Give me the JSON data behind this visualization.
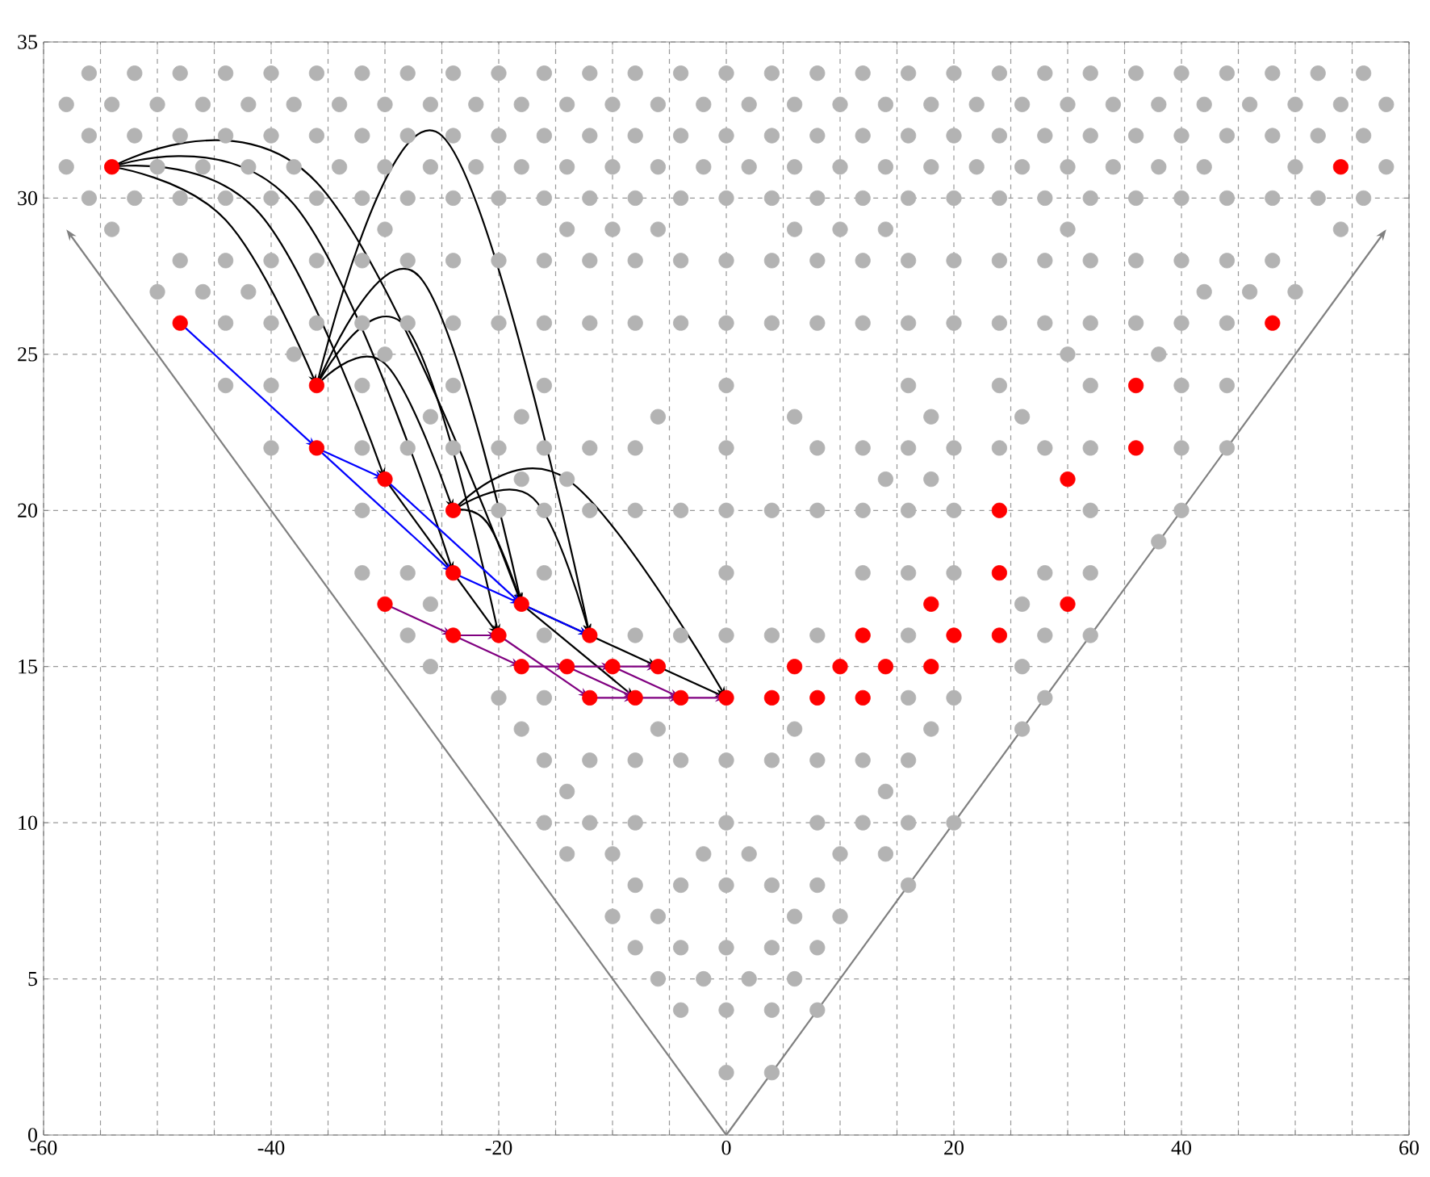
{
  "chart_data": {
    "type": "scatter",
    "marker": "circle",
    "grid": true,
    "xlim": [
      -60,
      60
    ],
    "ylim": [
      0,
      35
    ],
    "xticks": [
      -60,
      {
        "value": -55,
        "label": null
      },
      {
        "value": -50,
        "label": null
      },
      {
        "value": -45,
        "label": null
      },
      -40,
      {
        "value": -35,
        "label": null
      },
      {
        "value": -30,
        "label": null
      },
      {
        "value": -25,
        "label": null
      },
      -20,
      {
        "value": -15,
        "label": null
      },
      {
        "value": -10,
        "label": null
      },
      {
        "value": -5,
        "label": null
      },
      0,
      {
        "value": 5,
        "label": null
      },
      {
        "value": 10,
        "label": null
      },
      {
        "value": 15,
        "label": null
      },
      20,
      {
        "value": 25,
        "label": null
      },
      {
        "value": 30,
        "label": null
      },
      {
        "value": 35,
        "label": null
      },
      40,
      {
        "value": 45,
        "label": null
      },
      {
        "value": 50,
        "label": null
      },
      {
        "value": 55,
        "label": null
      },
      60
    ],
    "yticks": [
      0,
      5,
      10,
      15,
      20,
      25,
      30,
      35
    ],
    "series": [
      {
        "color": "#b3b3b3",
        "x": [
          -56,
          -52,
          -48,
          -44,
          -40,
          -36,
          -32,
          -28,
          -24,
          -20,
          -16,
          -12,
          -8,
          -4,
          0,
          4,
          8,
          12,
          16,
          20,
          24,
          28,
          32,
          36,
          40,
          44,
          48,
          52,
          56
        ],
        "values": [
          34,
          34,
          34,
          34,
          34,
          34,
          34,
          34,
          34,
          34,
          34,
          34,
          34,
          34,
          34,
          34,
          34,
          34,
          34,
          34,
          34,
          34,
          34,
          34,
          34,
          34,
          34,
          34,
          34
        ]
      },
      {
        "color": "#b3b3b3",
        "x": [
          -58,
          -54,
          -50,
          -46,
          -42,
          -38,
          -34,
          -30,
          -26,
          -22,
          -18,
          -14,
          -10,
          -6,
          -2,
          2,
          6,
          10,
          14,
          18,
          22,
          26,
          30,
          34,
          38,
          42,
          46,
          50,
          54,
          58
        ],
        "values": [
          33,
          33,
          33,
          33,
          33,
          33,
          33,
          33,
          33,
          33,
          33,
          33,
          33,
          33,
          33,
          33,
          33,
          33,
          33,
          33,
          33,
          33,
          33,
          33,
          33,
          33,
          33,
          33,
          33,
          33
        ]
      },
      {
        "color": "#b3b3b3",
        "x": [
          -56,
          -52,
          -48,
          -44,
          -40,
          -36,
          -32,
          -28,
          -24,
          -20,
          -16,
          -12,
          -8,
          -4,
          0,
          4,
          8,
          12,
          16,
          20,
          24,
          28,
          32,
          36,
          40,
          44,
          48,
          52,
          56
        ],
        "values": [
          32,
          32,
          32,
          32,
          32,
          32,
          32,
          32,
          32,
          32,
          32,
          32,
          32,
          32,
          32,
          32,
          32,
          32,
          32,
          32,
          32,
          32,
          32,
          32,
          32,
          32,
          32,
          32,
          32
        ]
      },
      {
        "color": "#b3b3b3",
        "x": [
          -58,
          -50,
          -46,
          -42,
          -38,
          -34,
          -30,
          -26,
          -22,
          -18,
          -14,
          -10,
          -6,
          -2,
          2,
          6,
          10,
          14,
          18,
          22,
          26,
          30,
          34,
          38,
          42,
          50,
          58
        ],
        "values": [
          31,
          31,
          31,
          31,
          31,
          31,
          31,
          31,
          31,
          31,
          31,
          31,
          31,
          31,
          31,
          31,
          31,
          31,
          31,
          31,
          31,
          31,
          31,
          31,
          31,
          31,
          31
        ]
      },
      {
        "color": "#b3b3b3",
        "x": [
          -56,
          -52,
          -48,
          -44,
          -40,
          -36,
          -32,
          -28,
          -24,
          -20,
          -16,
          -12,
          -8,
          -4,
          0,
          4,
          8,
          12,
          16,
          20,
          24,
          28,
          32,
          36,
          40,
          44,
          48,
          52,
          56
        ],
        "values": [
          30,
          30,
          30,
          30,
          30,
          30,
          30,
          30,
          30,
          30,
          30,
          30,
          30,
          30,
          30,
          30,
          30,
          30,
          30,
          30,
          30,
          30,
          30,
          30,
          30,
          30,
          30,
          30,
          30
        ]
      },
      {
        "color": "#b3b3b3",
        "x": [
          -54,
          -30,
          -14,
          -10,
          -6,
          6,
          10,
          14,
          30,
          54
        ],
        "values": [
          29,
          29,
          29,
          29,
          29,
          29,
          29,
          29,
          29,
          29
        ]
      },
      {
        "color": "#b3b3b3",
        "x": [
          -48,
          -44,
          -40,
          -36,
          -32,
          -28,
          -24,
          -20,
          -16,
          -12,
          -8,
          -4,
          0,
          4,
          8,
          12,
          16,
          20,
          24,
          28,
          32,
          36,
          40,
          44,
          48
        ],
        "values": [
          28,
          28,
          28,
          28,
          28,
          28,
          28,
          28,
          28,
          28,
          28,
          28,
          28,
          28,
          28,
          28,
          28,
          28,
          28,
          28,
          28,
          28,
          28,
          28,
          28
        ]
      },
      {
        "color": "#b3b3b3",
        "x": [
          -50,
          -46,
          -42,
          42,
          46,
          50
        ],
        "values": [
          27,
          27,
          27,
          27,
          27,
          27
        ]
      },
      {
        "color": "#b3b3b3",
        "x": [
          -44,
          -40,
          -36,
          -32,
          -28,
          -24,
          -20,
          -16,
          -12,
          -8,
          -4,
          0,
          4,
          8,
          12,
          16,
          20,
          24,
          28,
          32,
          36,
          40,
          44
        ],
        "values": [
          26,
          26,
          26,
          26,
          26,
          26,
          26,
          26,
          26,
          26,
          26,
          26,
          26,
          26,
          26,
          26,
          26,
          26,
          26,
          26,
          26,
          26,
          26
        ]
      },
      {
        "color": "#b3b3b3",
        "x": [
          -38,
          -30,
          30,
          38
        ],
        "values": [
          25,
          25,
          25,
          25
        ]
      },
      {
        "color": "#b3b3b3",
        "x": [
          -44,
          -40,
          -32,
          -24,
          -16,
          0,
          16,
          24,
          32,
          40,
          44
        ],
        "values": [
          24,
          24,
          24,
          24,
          24,
          24,
          24,
          24,
          24,
          24,
          24
        ]
      },
      {
        "color": "#b3b3b3",
        "x": [
          -26,
          -18,
          -6,
          6,
          18,
          26
        ],
        "values": [
          23,
          23,
          23,
          23,
          23,
          23
        ]
      },
      {
        "color": "#b3b3b3",
        "x": [
          -40,
          -32,
          -28,
          -24,
          -20,
          -16,
          -12,
          -8,
          0,
          8,
          12,
          16,
          20,
          24,
          28,
          32,
          40,
          44
        ],
        "values": [
          22,
          22,
          22,
          22,
          22,
          22,
          22,
          22,
          22,
          22,
          22,
          22,
          22,
          22,
          22,
          22,
          22,
          22
        ]
      },
      {
        "color": "#b3b3b3",
        "x": [
          -18,
          -14,
          14,
          18
        ],
        "values": [
          21,
          21,
          21,
          21
        ]
      },
      {
        "color": "#b3b3b3",
        "x": [
          -32,
          -20,
          -16,
          -12,
          -8,
          -4,
          0,
          4,
          8,
          12,
          16,
          20,
          32,
          40
        ],
        "values": [
          20,
          20,
          20,
          20,
          20,
          20,
          20,
          20,
          20,
          20,
          20,
          20,
          20,
          20
        ]
      },
      {
        "color": "#b3b3b3",
        "x": [
          38
        ],
        "values": [
          19
        ]
      },
      {
        "color": "#b3b3b3",
        "x": [
          -32,
          -28,
          -16,
          0,
          12,
          16,
          20,
          28,
          32
        ],
        "values": [
          18,
          18,
          18,
          18,
          18,
          18,
          18,
          18,
          18
        ]
      },
      {
        "color": "#b3b3b3",
        "x": [
          -26,
          26
        ],
        "values": [
          17,
          17
        ]
      },
      {
        "color": "#b3b3b3",
        "x": [
          -28,
          -16,
          -8,
          -4,
          0,
          4,
          8,
          16,
          28,
          32
        ],
        "values": [
          16,
          16,
          16,
          16,
          16,
          16,
          16,
          16,
          16,
          16
        ]
      },
      {
        "color": "#b3b3b3",
        "x": [
          -26,
          26
        ],
        "values": [
          15,
          15
        ]
      },
      {
        "color": "#b3b3b3",
        "x": [
          -20,
          -16,
          16,
          20,
          28
        ],
        "values": [
          14,
          14,
          14,
          14,
          14
        ]
      },
      {
        "color": "#b3b3b3",
        "x": [
          -18,
          -6,
          6,
          18,
          26
        ],
        "values": [
          13,
          13,
          13,
          13,
          13
        ]
      },
      {
        "color": "#b3b3b3",
        "x": [
          -16,
          -12,
          -8,
          -4,
          0,
          4,
          8,
          12,
          16
        ],
        "values": [
          12,
          12,
          12,
          12,
          12,
          12,
          12,
          12,
          12
        ]
      },
      {
        "color": "#b3b3b3",
        "x": [
          -14,
          14
        ],
        "values": [
          11,
          11
        ]
      },
      {
        "color": "#b3b3b3",
        "x": [
          -16,
          -12,
          -8,
          0,
          8,
          12,
          16,
          20
        ],
        "values": [
          10,
          10,
          10,
          10,
          10,
          10,
          10,
          10
        ]
      },
      {
        "color": "#b3b3b3",
        "x": [
          -14,
          -10,
          -2,
          2,
          10,
          14
        ],
        "values": [
          9,
          9,
          9,
          9,
          9,
          9
        ]
      },
      {
        "color": "#b3b3b3",
        "x": [
          -8,
          -4,
          0,
          4,
          8,
          16
        ],
        "values": [
          8,
          8,
          8,
          8,
          8,
          8
        ]
      },
      {
        "color": "#b3b3b3",
        "x": [
          -10,
          -6,
          6,
          10
        ],
        "values": [
          7,
          7,
          7,
          7
        ]
      },
      {
        "color": "#b3b3b3",
        "x": [
          -8,
          -4,
          0,
          4,
          8
        ],
        "values": [
          6,
          6,
          6,
          6,
          6
        ]
      },
      {
        "color": "#b3b3b3",
        "x": [
          -6,
          -2,
          2,
          6
        ],
        "values": [
          5,
          5,
          5,
          5
        ]
      },
      {
        "color": "#b3b3b3",
        "x": [
          -4,
          0,
          4,
          8
        ],
        "values": [
          4,
          4,
          4,
          4
        ]
      },
      {
        "color": "#b3b3b3",
        "x": [
          0,
          4
        ],
        "values": [
          2,
          2
        ]
      },
      {
        "color": "#ff0000",
        "x": [
          -54,
          54,
          -48,
          48,
          -36,
          36,
          -36,
          36,
          -30,
          30,
          -24,
          24,
          -24,
          24,
          -30,
          -18,
          18,
          30,
          -24,
          -20,
          -12,
          12,
          20,
          24,
          -18,
          -14,
          -10,
          -6,
          6,
          10,
          14,
          18,
          -12,
          -8,
          -4,
          0,
          4,
          8,
          12
        ],
        "values": [
          31,
          31,
          26,
          26,
          24,
          24,
          22,
          22,
          21,
          21,
          20,
          20,
          18,
          18,
          17,
          17,
          17,
          17,
          16,
          16,
          16,
          16,
          16,
          16,
          15,
          15,
          15,
          15,
          15,
          15,
          15,
          15,
          14,
          14,
          14,
          14,
          14,
          14,
          14
        ]
      }
    ]
  }
}
